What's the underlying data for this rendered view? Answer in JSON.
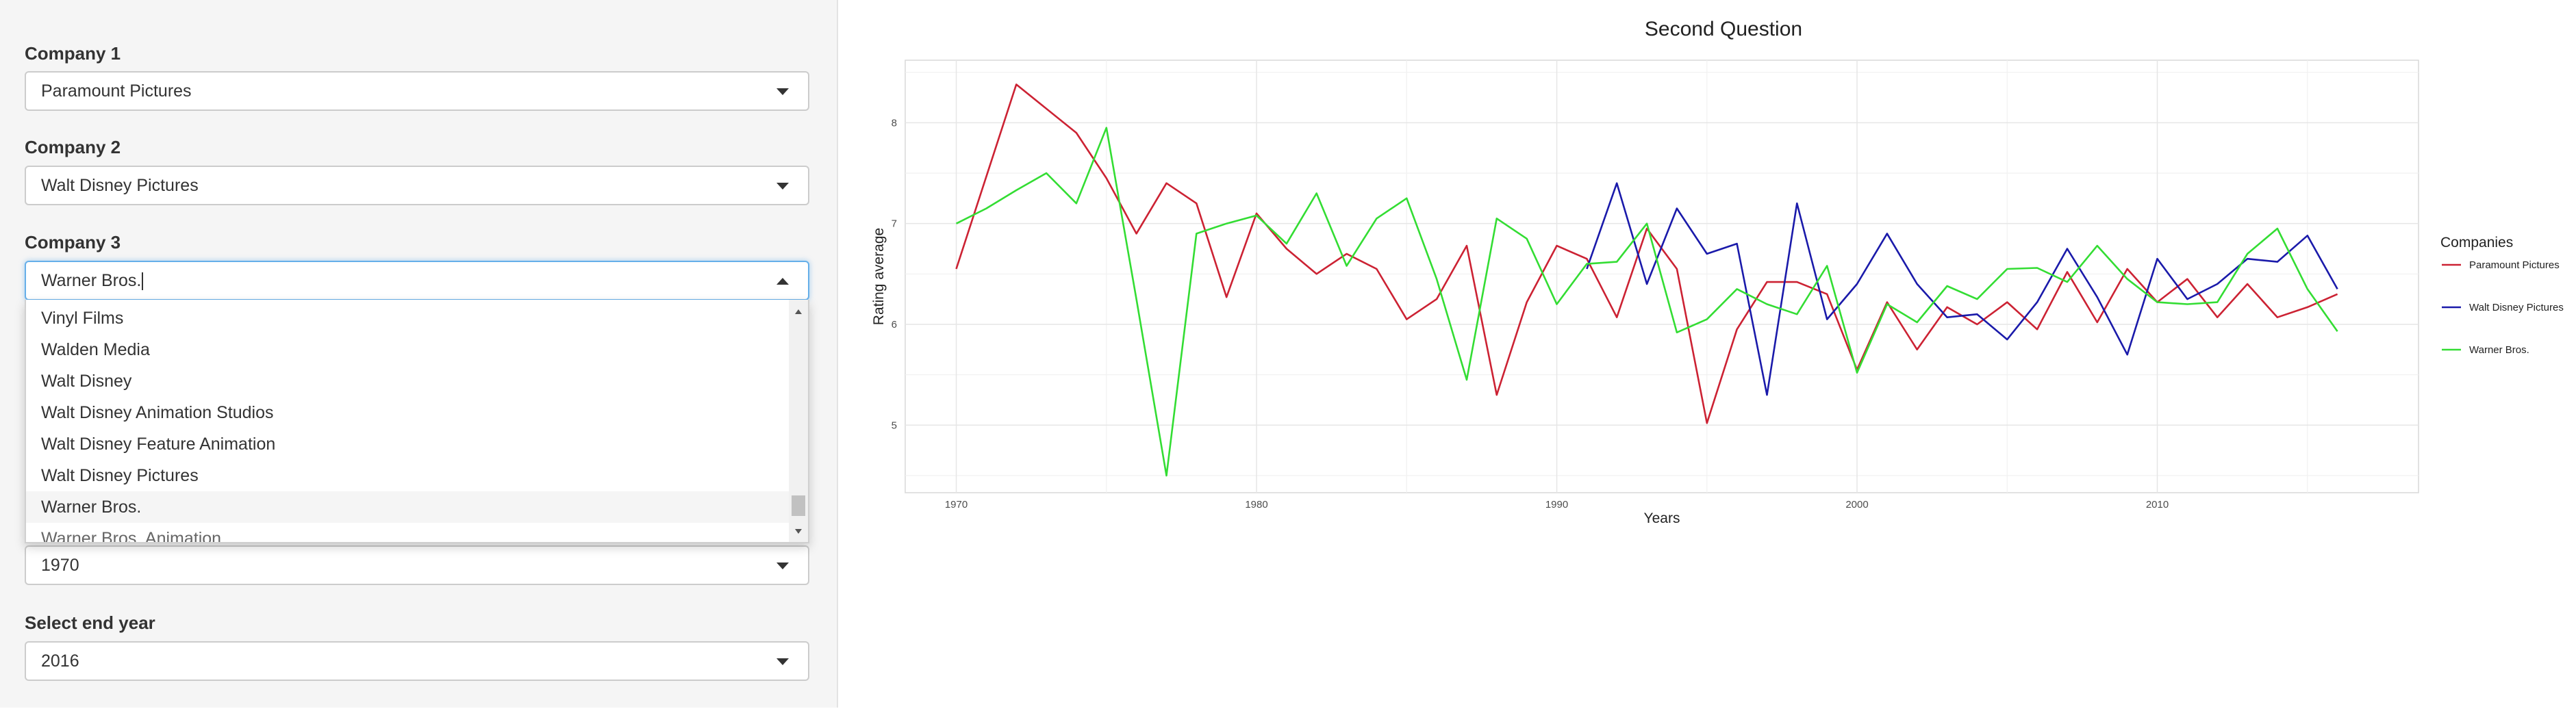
{
  "sidebar": {
    "company1": {
      "label": "Company 1",
      "value": "Paramount Pictures"
    },
    "company2": {
      "label": "Company 2",
      "value": "Walt Disney Pictures"
    },
    "company3": {
      "label": "Company 3",
      "value": "Warner Bros."
    },
    "dropdown": {
      "options": [
        "Vinyl Films",
        "Walden Media",
        "Walt Disney",
        "Walt Disney Animation Studios",
        "Walt Disney Feature Animation",
        "Walt Disney Pictures",
        "Warner Bros.",
        "Warner Bros. Animation"
      ],
      "selected": "Warner Bros."
    },
    "start_year": {
      "value": "1970"
    },
    "end_year": {
      "label": "Select end year",
      "value": "2016"
    }
  },
  "chart_data": {
    "type": "line",
    "title": "Second Question",
    "xlabel": "Years",
    "ylabel": "Rating average",
    "xlim": [
      1968.3,
      2018.7
    ],
    "ylim": [
      4.33,
      8.62
    ],
    "x_ticks": [
      1970,
      1980,
      1990,
      2000,
      2010
    ],
    "y_ticks": [
      5,
      6,
      7,
      8
    ],
    "grid": true,
    "legend_title": "Companies",
    "legend_position": "right",
    "series": [
      {
        "name": "Paramount Pictures",
        "color": "#cc2233",
        "points": [
          [
            1970,
            6.55
          ],
          [
            1972,
            8.38
          ],
          [
            1974,
            7.9
          ],
          [
            1975,
            7.45
          ],
          [
            1976,
            6.9
          ],
          [
            1977,
            7.4
          ],
          [
            1978,
            7.2
          ],
          [
            1979,
            6.27
          ],
          [
            1980,
            7.1
          ],
          [
            1981,
            6.75
          ],
          [
            1982,
            6.5
          ],
          [
            1983,
            6.7
          ],
          [
            1984,
            6.55
          ],
          [
            1985,
            6.05
          ],
          [
            1986,
            6.25
          ],
          [
            1987,
            6.78
          ],
          [
            1988,
            5.3
          ],
          [
            1989,
            6.22
          ],
          [
            1990,
            6.78
          ],
          [
            1991,
            6.65
          ],
          [
            1992,
            6.07
          ],
          [
            1993,
            6.95
          ],
          [
            1994,
            6.55
          ],
          [
            1995,
            5.02
          ],
          [
            1996,
            5.95
          ],
          [
            1997,
            6.42
          ],
          [
            1998,
            6.42
          ],
          [
            1999,
            6.3
          ],
          [
            2000,
            5.55
          ],
          [
            2001,
            6.22
          ],
          [
            2002,
            5.75
          ],
          [
            2003,
            6.17
          ],
          [
            2004,
            6.0
          ],
          [
            2005,
            6.22
          ],
          [
            2006,
            5.95
          ],
          [
            2007,
            6.52
          ],
          [
            2008,
            6.02
          ],
          [
            2009,
            6.55
          ],
          [
            2010,
            6.22
          ],
          [
            2011,
            6.45
          ],
          [
            2012,
            6.07
          ],
          [
            2013,
            6.4
          ],
          [
            2014,
            6.07
          ],
          [
            2015,
            6.17
          ],
          [
            2016,
            6.3
          ]
        ]
      },
      {
        "name": "Walt Disney Pictures",
        "color": "#1a1aaa",
        "points": [
          [
            1991,
            6.55
          ],
          [
            1992,
            7.4
          ],
          [
            1993,
            6.4
          ],
          [
            1994,
            7.15
          ],
          [
            1995,
            6.7
          ],
          [
            1996,
            6.8
          ],
          [
            1997,
            5.3
          ],
          [
            1998,
            7.2
          ],
          [
            1999,
            6.05
          ],
          [
            2000,
            6.4
          ],
          [
            2001,
            6.9
          ],
          [
            2002,
            6.4
          ],
          [
            2003,
            6.07
          ],
          [
            2004,
            6.1
          ],
          [
            2005,
            5.85
          ],
          [
            2006,
            6.22
          ],
          [
            2007,
            6.75
          ],
          [
            2008,
            6.27
          ],
          [
            2009,
            5.7
          ],
          [
            2010,
            6.65
          ],
          [
            2011,
            6.25
          ],
          [
            2012,
            6.4
          ],
          [
            2013,
            6.65
          ],
          [
            2014,
            6.62
          ],
          [
            2015,
            6.88
          ],
          [
            2016,
            6.35
          ]
        ]
      },
      {
        "name": "Warner Bros.",
        "color": "#33dd33",
        "points": [
          [
            1970,
            7.0
          ],
          [
            1971,
            7.15
          ],
          [
            1972,
            7.33
          ],
          [
            1973,
            7.5
          ],
          [
            1974,
            7.2
          ],
          [
            1975,
            7.95
          ],
          [
            1976,
            6.25
          ],
          [
            1977,
            4.5
          ],
          [
            1978,
            6.9
          ],
          [
            1979,
            7.0
          ],
          [
            1980,
            7.08
          ],
          [
            1981,
            6.8
          ],
          [
            1982,
            7.3
          ],
          [
            1983,
            6.58
          ],
          [
            1984,
            7.05
          ],
          [
            1985,
            7.25
          ],
          [
            1986,
            6.45
          ],
          [
            1987,
            5.45
          ],
          [
            1988,
            7.05
          ],
          [
            1989,
            6.85
          ],
          [
            1990,
            6.2
          ],
          [
            1991,
            6.6
          ],
          [
            1992,
            6.62
          ],
          [
            1993,
            7.0
          ],
          [
            1994,
            5.92
          ],
          [
            1995,
            6.05
          ],
          [
            1996,
            6.35
          ],
          [
            1997,
            6.2
          ],
          [
            1998,
            6.1
          ],
          [
            1999,
            6.58
          ],
          [
            2000,
            5.52
          ],
          [
            2001,
            6.2
          ],
          [
            2002,
            6.02
          ],
          [
            2003,
            6.38
          ],
          [
            2004,
            6.25
          ],
          [
            2005,
            6.55
          ],
          [
            2006,
            6.56
          ],
          [
            2007,
            6.42
          ],
          [
            2008,
            6.78
          ],
          [
            2009,
            6.45
          ],
          [
            2010,
            6.22
          ],
          [
            2011,
            6.2
          ],
          [
            2012,
            6.22
          ],
          [
            2013,
            6.7
          ],
          [
            2014,
            6.95
          ],
          [
            2015,
            6.35
          ],
          [
            2016,
            5.93
          ]
        ]
      }
    ]
  }
}
